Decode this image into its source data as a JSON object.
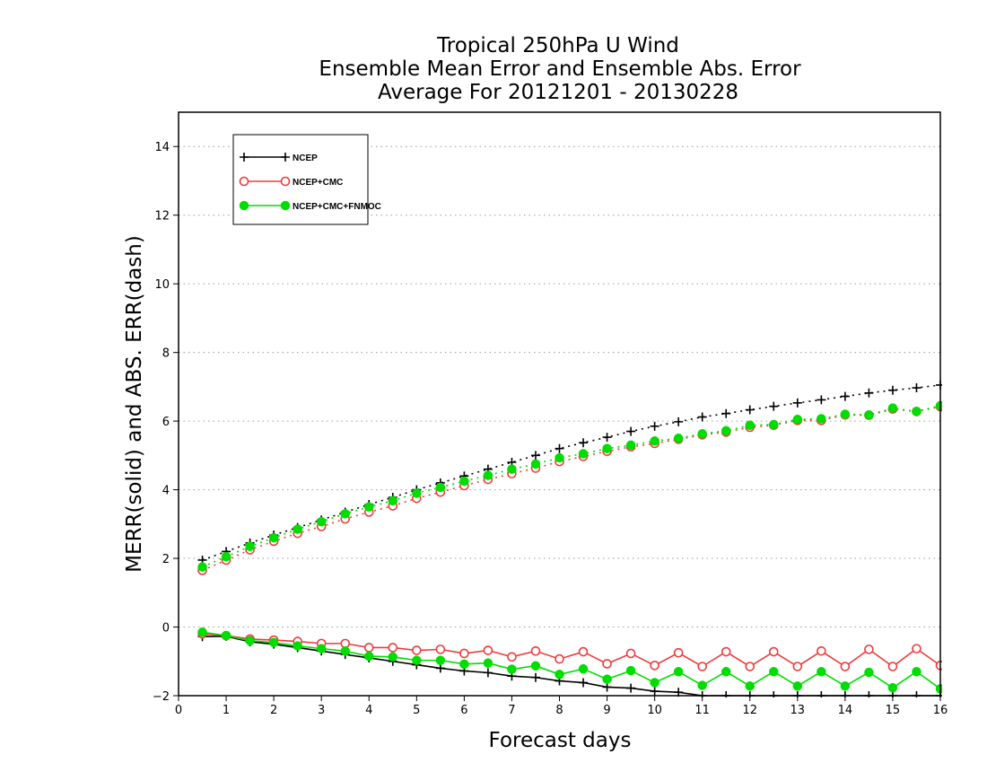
{
  "chart_data": {
    "type": "line",
    "title": [
      "Tropical 250hPa U Wind",
      "Ensemble Mean Error and Ensemble Abs. Error",
      "Average For 20121201 - 20130228"
    ],
    "xlabel": "Forecast days",
    "ylabel": "MERR(solid) and ABS. ERR(dash)",
    "xlim": [
      0,
      16
    ],
    "ylim": [
      -2,
      15
    ],
    "xticks": [
      0,
      1,
      2,
      3,
      4,
      5,
      6,
      7,
      8,
      9,
      10,
      11,
      12,
      13,
      14,
      15,
      16
    ],
    "yticks": [
      -2,
      0,
      2,
      4,
      6,
      8,
      10,
      12,
      14
    ],
    "ytick_labels": [
      "−2",
      "0",
      "2",
      "4",
      "6",
      "8",
      "10",
      "12",
      "14"
    ],
    "grid": "horizontal dotted",
    "legend_position": "top-left",
    "x": [
      0.5,
      1,
      1.5,
      2,
      2.5,
      3,
      3.5,
      4,
      4.5,
      5,
      5.5,
      6,
      6.5,
      7,
      7.5,
      8,
      8.5,
      9,
      9.5,
      10,
      10.5,
      11,
      11.5,
      12,
      12.5,
      13,
      13.5,
      14,
      14.5,
      15,
      15.5,
      16
    ],
    "series": [
      {
        "name": "NCEP",
        "color": "#000000",
        "marker": "plus",
        "mean_error": [
          -0.28,
          -0.27,
          -0.43,
          -0.5,
          -0.6,
          -0.7,
          -0.8,
          -0.9,
          -1.0,
          -1.1,
          -1.2,
          -1.28,
          -1.33,
          -1.43,
          -1.47,
          -1.57,
          -1.62,
          -1.75,
          -1.78,
          -1.87,
          -1.9,
          -2.0,
          -2.0,
          -2.0,
          -2.0,
          -2.0,
          -2.0,
          -2.0,
          -2.0,
          -2.0,
          -2.0,
          -2.0
        ],
        "abs_error": [
          1.95,
          2.2,
          2.45,
          2.68,
          2.9,
          3.12,
          3.35,
          3.57,
          3.78,
          4.0,
          4.2,
          4.4,
          4.6,
          4.8,
          5.0,
          5.2,
          5.37,
          5.53,
          5.7,
          5.85,
          5.98,
          6.12,
          6.22,
          6.33,
          6.43,
          6.53,
          6.62,
          6.72,
          6.82,
          6.9,
          6.97,
          7.05
        ]
      },
      {
        "name": "NCEP+CMC",
        "color": "#ee3b3b",
        "marker": "circle-open",
        "mean_error": [
          -0.2,
          -0.25,
          -0.35,
          -0.38,
          -0.42,
          -0.48,
          -0.48,
          -0.6,
          -0.6,
          -0.68,
          -0.65,
          -0.77,
          -0.68,
          -0.87,
          -0.7,
          -0.93,
          -0.72,
          -1.07,
          -0.77,
          -1.12,
          -0.75,
          -1.15,
          -0.72,
          -1.15,
          -0.72,
          -1.15,
          -0.7,
          -1.15,
          -0.65,
          -1.15,
          -0.63,
          -1.12
        ],
        "abs_error": [
          1.65,
          1.95,
          2.25,
          2.5,
          2.73,
          2.93,
          3.15,
          3.35,
          3.53,
          3.75,
          3.93,
          4.12,
          4.3,
          4.47,
          4.63,
          4.82,
          4.97,
          5.12,
          5.25,
          5.35,
          5.47,
          5.6,
          5.68,
          5.82,
          5.88,
          6.02,
          6.02,
          6.18,
          6.17,
          6.35,
          6.28,
          6.42
        ]
      },
      {
        "name": "NCEP+CMC+FNMOC",
        "color": "#00dd00",
        "marker": "circle-filled",
        "mean_error": [
          -0.15,
          -0.25,
          -0.4,
          -0.45,
          -0.55,
          -0.63,
          -0.7,
          -0.85,
          -0.87,
          -0.97,
          -0.97,
          -1.08,
          -1.05,
          -1.23,
          -1.13,
          -1.38,
          -1.22,
          -1.52,
          -1.27,
          -1.62,
          -1.3,
          -1.7,
          -1.3,
          -1.72,
          -1.3,
          -1.72,
          -1.3,
          -1.72,
          -1.32,
          -1.77,
          -1.3,
          -1.8
        ],
        "abs_error": [
          1.75,
          2.05,
          2.35,
          2.6,
          2.85,
          3.07,
          3.3,
          3.5,
          3.68,
          3.9,
          4.07,
          4.25,
          4.42,
          4.6,
          4.75,
          4.93,
          5.05,
          5.2,
          5.3,
          5.42,
          5.5,
          5.63,
          5.72,
          5.88,
          5.9,
          6.05,
          6.07,
          6.2,
          6.18,
          6.38,
          6.28,
          6.45
        ]
      }
    ]
  }
}
